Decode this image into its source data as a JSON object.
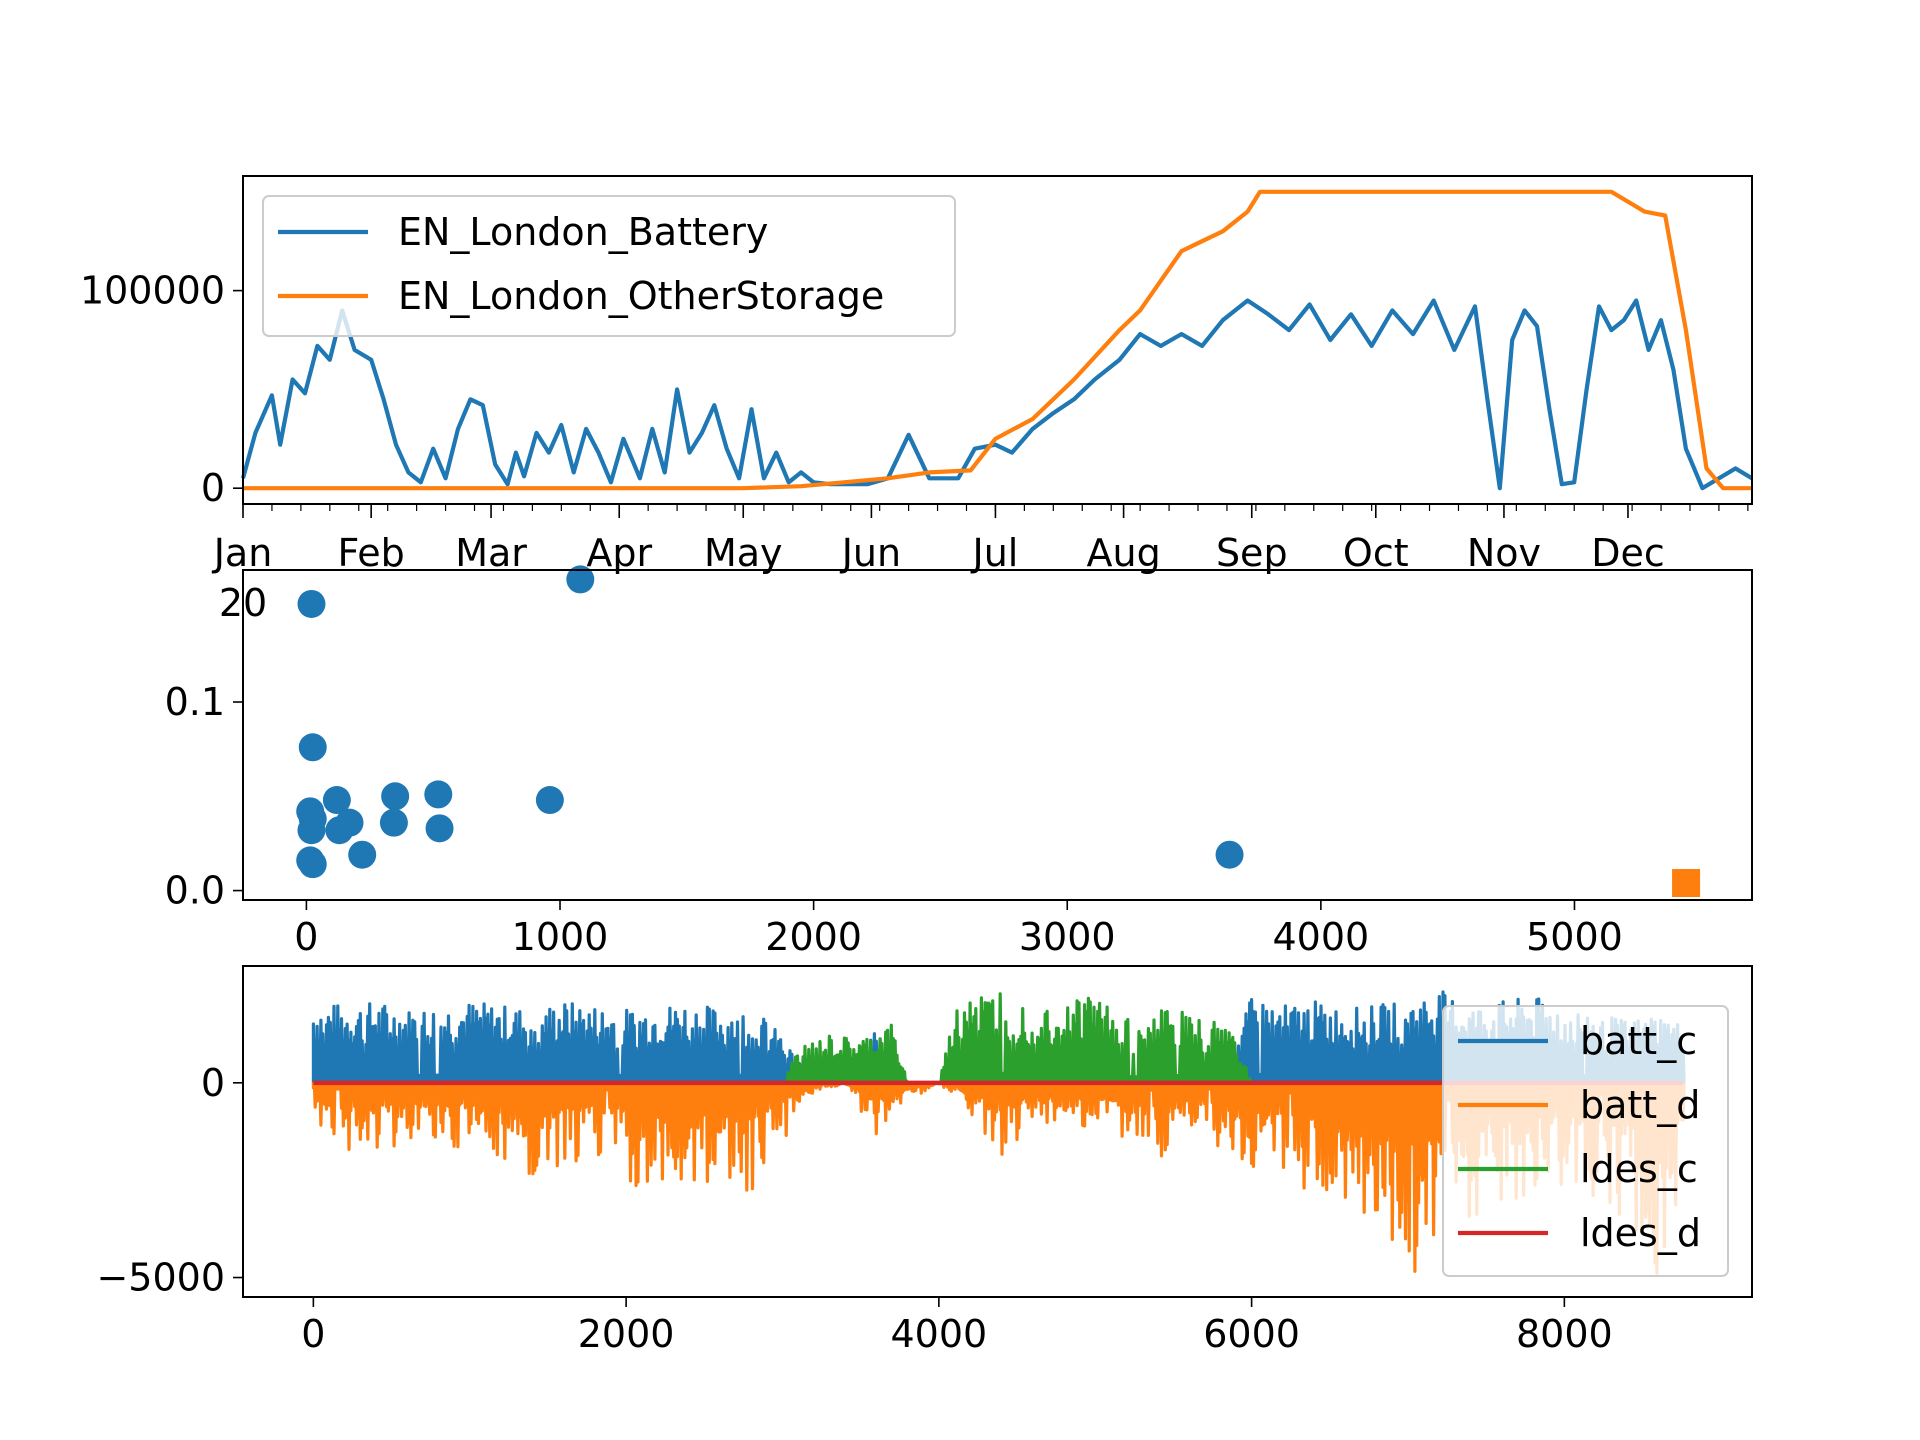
{
  "colors": {
    "blue": "#1f77b4",
    "orange": "#ff7f0e",
    "green": "#2ca02c",
    "red": "#d62728"
  },
  "chart_data": [
    {
      "type": "line",
      "title": "",
      "xlabel": "",
      "ylabel": "",
      "x_axis": "date",
      "year": 2020,
      "xlim": [
        "2020-01-01",
        "2020-12-31"
      ],
      "ylim": [
        -8000,
        158000
      ],
      "x_tick_labels": [
        "Jan",
        "Feb",
        "Mar",
        "Apr",
        "May",
        "Jun",
        "Jul",
        "Aug",
        "Sep",
        "Oct",
        "Nov",
        "Dec"
      ],
      "x_tick_dates": [
        "2020-01-01",
        "2020-02-01",
        "2020-03-01",
        "2020-04-01",
        "2020-05-01",
        "2020-06-01",
        "2020-07-01",
        "2020-08-01",
        "2020-09-01",
        "2020-10-01",
        "2020-11-01",
        "2020-12-01"
      ],
      "x_tick_year_label": "20",
      "y_ticks": [
        0,
        100000
      ],
      "y_tick_labels": [
        "0",
        "100000"
      ],
      "legend_position": "upper-left",
      "series": [
        {
          "name": "EN_London_Battery",
          "color": "#1f77b4",
          "x": [
            "2020-01-01",
            "2020-01-04",
            "2020-01-08",
            "2020-01-10",
            "2020-01-13",
            "2020-01-16",
            "2020-01-19",
            "2020-01-22",
            "2020-01-25",
            "2020-01-28",
            "2020-02-01",
            "2020-02-04",
            "2020-02-07",
            "2020-02-10",
            "2020-02-13",
            "2020-02-16",
            "2020-02-19",
            "2020-02-22",
            "2020-02-25",
            "2020-02-28",
            "2020-03-02",
            "2020-03-05",
            "2020-03-07",
            "2020-03-09",
            "2020-03-12",
            "2020-03-15",
            "2020-03-18",
            "2020-03-21",
            "2020-03-24",
            "2020-03-27",
            "2020-03-30",
            "2020-04-02",
            "2020-04-06",
            "2020-04-09",
            "2020-04-12",
            "2020-04-15",
            "2020-04-18",
            "2020-04-21",
            "2020-04-24",
            "2020-04-27",
            "2020-04-30",
            "2020-05-03",
            "2020-05-06",
            "2020-05-09",
            "2020-05-12",
            "2020-05-15",
            "2020-05-18",
            "2020-05-22",
            "2020-05-26",
            "2020-05-31",
            "2020-06-05",
            "2020-06-10",
            "2020-06-15",
            "2020-06-18",
            "2020-06-22",
            "2020-06-26",
            "2020-07-01",
            "2020-07-05",
            "2020-07-10",
            "2020-07-15",
            "2020-07-20",
            "2020-07-25",
            "2020-07-31",
            "2020-08-05",
            "2020-08-10",
            "2020-08-15",
            "2020-08-20",
            "2020-08-25",
            "2020-08-31",
            "2020-09-05",
            "2020-09-10",
            "2020-09-15",
            "2020-09-20",
            "2020-09-25",
            "2020-09-30",
            "2020-10-05",
            "2020-10-10",
            "2020-10-15",
            "2020-10-20",
            "2020-10-25",
            "2020-10-28",
            "2020-10-31",
            "2020-11-03",
            "2020-11-06",
            "2020-11-09",
            "2020-11-12",
            "2020-11-15",
            "2020-11-18",
            "2020-11-21",
            "2020-11-24",
            "2020-11-27",
            "2020-11-30",
            "2020-12-03",
            "2020-12-06",
            "2020-12-09",
            "2020-12-12",
            "2020-12-15",
            "2020-12-19",
            "2020-12-23",
            "2020-12-27",
            "2020-12-31"
          ],
          "y": [
            5000,
            28000,
            47000,
            22000,
            55000,
            48000,
            72000,
            65000,
            90000,
            70000,
            65000,
            45000,
            22000,
            8000,
            3000,
            20000,
            5000,
            30000,
            45000,
            42000,
            12000,
            2000,
            18000,
            6000,
            28000,
            18000,
            32000,
            8000,
            30000,
            18000,
            3000,
            25000,
            5000,
            30000,
            8000,
            50000,
            18000,
            28000,
            42000,
            20000,
            5000,
            40000,
            5000,
            18000,
            3000,
            8000,
            3000,
            2000,
            2000,
            2000,
            5000,
            27000,
            5000,
            5000,
            5000,
            20000,
            22000,
            18000,
            30000,
            38000,
            45000,
            55000,
            65000,
            78000,
            72000,
            78000,
            72000,
            85000,
            95000,
            88000,
            80000,
            93000,
            75000,
            88000,
            72000,
            90000,
            78000,
            95000,
            70000,
            92000,
            45000,
            0,
            75000,
            90000,
            82000,
            40000,
            2000,
            3000,
            50000,
            92000,
            80000,
            85000,
            95000,
            70000,
            85000,
            60000,
            20000,
            0,
            5000,
            10000,
            5000
          ]
        },
        {
          "name": "EN_London_OtherStorage",
          "color": "#ff7f0e",
          "x": [
            "2020-01-01",
            "2020-05-01",
            "2020-05-15",
            "2020-06-05",
            "2020-06-15",
            "2020-06-25",
            "2020-07-01",
            "2020-07-10",
            "2020-07-20",
            "2020-07-31",
            "2020-08-05",
            "2020-08-10",
            "2020-08-15",
            "2020-08-20",
            "2020-08-25",
            "2020-08-31",
            "2020-09-03",
            "2020-09-08",
            "2020-09-20",
            "2020-10-10",
            "2020-10-31",
            "2020-11-20",
            "2020-11-27",
            "2020-12-01",
            "2020-12-05",
            "2020-12-10",
            "2020-12-15",
            "2020-12-20",
            "2020-12-24",
            "2020-12-31"
          ],
          "y": [
            0,
            0,
            1000,
            5000,
            8000,
            9000,
            25000,
            35000,
            55000,
            80000,
            90000,
            105000,
            120000,
            125000,
            130000,
            140000,
            150000,
            150000,
            150000,
            150000,
            150000,
            150000,
            150000,
            145000,
            140000,
            138000,
            80000,
            10000,
            0,
            0
          ]
        }
      ]
    },
    {
      "type": "scatter",
      "title": "",
      "xlabel": "",
      "ylabel": "",
      "xlim": [
        -250,
        5700
      ],
      "ylim": [
        -0.005,
        0.17
      ],
      "x_ticks": [
        0,
        1000,
        2000,
        3000,
        4000,
        5000
      ],
      "x_tick_labels": [
        "0",
        "1000",
        "2000",
        "3000",
        "4000",
        "5000"
      ],
      "y_ticks": [
        0.0,
        0.1
      ],
      "y_tick_labels": [
        "0.0",
        "0.1"
      ],
      "series": [
        {
          "marker": "circle",
          "color": "#1f77b4",
          "x": [
            20,
            1080,
            25,
            15,
            25,
            20,
            120,
            130,
            170,
            220,
            350,
            345,
            520,
            525,
            960,
            3640,
            15,
            25
          ],
          "y": [
            0.152,
            0.165,
            0.076,
            0.042,
            0.038,
            0.032,
            0.048,
            0.032,
            0.036,
            0.019,
            0.05,
            0.036,
            0.051,
            0.033,
            0.048,
            0.019,
            0.016,
            0.014
          ]
        },
        {
          "marker": "square",
          "color": "#ff7f0e",
          "x": [
            5440
          ],
          "y": [
            0.004
          ]
        }
      ]
    },
    {
      "type": "line",
      "title": "",
      "xlabel": "",
      "ylabel": "",
      "xlim": [
        -450,
        9200
      ],
      "ylim": [
        -5500,
        3000
      ],
      "x_ticks": [
        0,
        2000,
        4000,
        6000,
        8000
      ],
      "x_tick_labels": [
        "0",
        "2000",
        "4000",
        "6000",
        "8000"
      ],
      "y_ticks": [
        -5000,
        0
      ],
      "y_tick_labels": [
        "−5000",
        "0"
      ],
      "legend_position": "upper-right",
      "series": [
        {
          "name": "batt_c",
          "color": "#1f77b4",
          "x": [
            0,
            200,
            400,
            600,
            800,
            1000,
            1200,
            1400,
            1600,
            1800,
            2000,
            2200,
            2400,
            2600,
            2800,
            3000,
            3200,
            3400,
            3600,
            3800,
            4000,
            4200,
            4400,
            4600,
            4800,
            5000,
            5200,
            5400,
            5600,
            5800,
            6000,
            6200,
            6400,
            6600,
            6800,
            7000,
            7200,
            7400,
            7600,
            7800,
            8000,
            8200,
            8400,
            8600,
            8760
          ],
          "y": [
            2100,
            2000,
            2100,
            1900,
            2000,
            2100,
            2000,
            1900,
            2100,
            2000,
            1900,
            2000,
            2100,
            1900,
            2000,
            1200,
            0,
            0,
            1500,
            0,
            0,
            0,
            0,
            0,
            0,
            0,
            0,
            0,
            0,
            0,
            2200,
            2000,
            2100,
            1900,
            2000,
            2100,
            2400,
            2000,
            2100,
            2200,
            2000,
            1800,
            1600,
            1800,
            1500
          ]
        },
        {
          "name": "batt_d",
          "color": "#ff7f0e",
          "x": [
            0,
            200,
            400,
            600,
            800,
            1000,
            1200,
            1400,
            1600,
            1800,
            2000,
            2100,
            2200,
            2400,
            2600,
            2800,
            3000,
            3200,
            3400,
            3600,
            3800,
            4000,
            4200,
            4400,
            4600,
            4800,
            5000,
            5200,
            5400,
            5600,
            5800,
            6000,
            6200,
            6400,
            6600,
            6800,
            7000,
            7200,
            7400,
            7600,
            7800,
            8000,
            8200,
            8400,
            8600,
            8760
          ],
          "y": [
            -1300,
            -1700,
            -1800,
            -1800,
            -1800,
            -1700,
            -2300,
            -3100,
            -2100,
            -1900,
            -1800,
            -4500,
            -2500,
            -2700,
            -2600,
            -3100,
            -1500,
            -300,
            0,
            -1500,
            -500,
            0,
            -800,
            -2000,
            -1000,
            -1200,
            -1300,
            -1500,
            -2000,
            -1200,
            -1800,
            -2500,
            -2500,
            -3000,
            -3800,
            -4000,
            -5000,
            -4800,
            -3500,
            -3500,
            -3000,
            -2800,
            -3000,
            -3500,
            -5000,
            -3000
          ]
        },
        {
          "name": "ldes_c",
          "color": "#2ca02c",
          "x": [
            0,
            3000,
            3100,
            3300,
            3500,
            3700,
            3800,
            4000,
            4100,
            4200,
            4300,
            4400,
            4500,
            4600,
            4700,
            4800,
            4900,
            5000,
            5100,
            5200,
            5300,
            5400,
            5500,
            5600,
            5700,
            5800,
            5900,
            6000,
            8760
          ],
          "y": [
            0,
            0,
            900,
            1200,
            1100,
            1500,
            0,
            0,
            1800,
            2700,
            2200,
            2500,
            2200,
            2000,
            2100,
            1900,
            2300,
            2400,
            2100,
            1700,
            1500,
            2000,
            1900,
            1800,
            1500,
            1800,
            1200,
            0,
            0
          ]
        },
        {
          "name": "ldes_d",
          "color": "#d62728",
          "x": [
            0,
            8760
          ],
          "y": [
            0,
            0
          ]
        }
      ]
    }
  ]
}
